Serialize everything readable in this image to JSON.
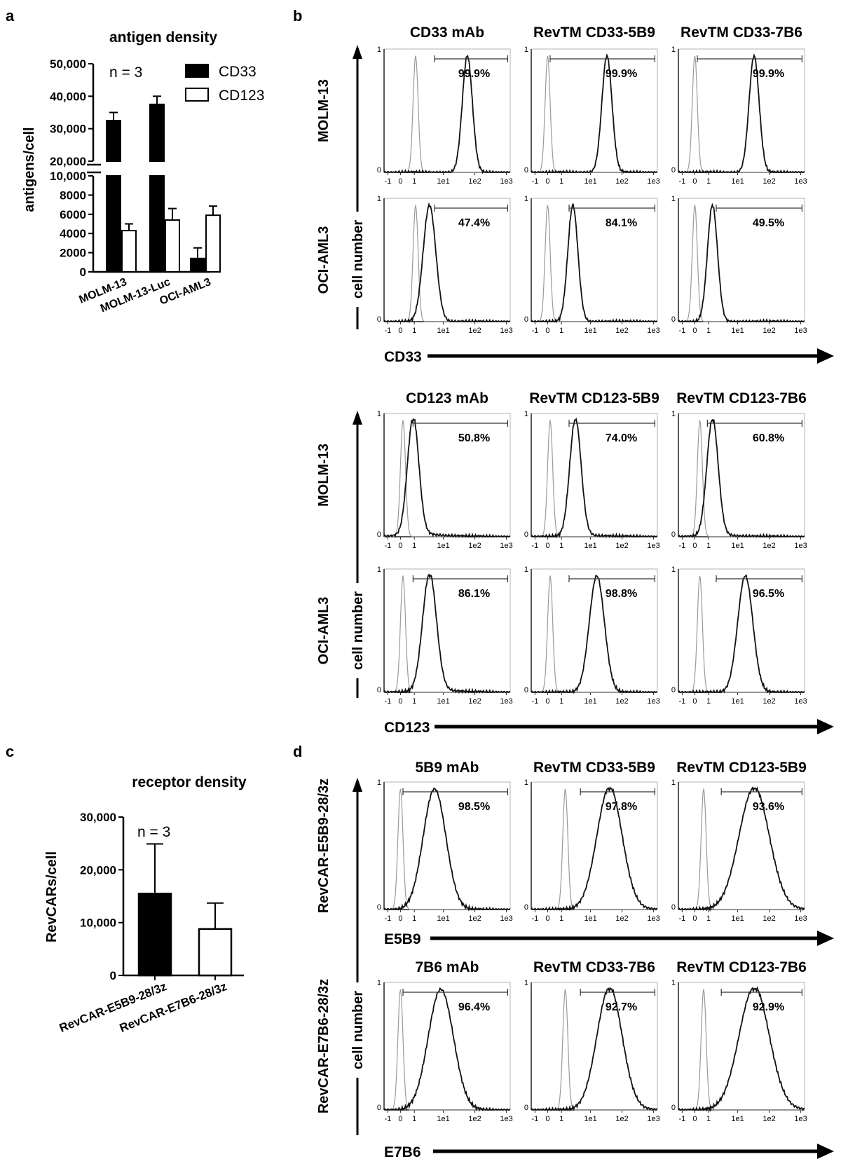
{
  "chart_data": [
    {
      "panel": "a",
      "type": "bar",
      "title": "antigen density",
      "annotation": "n = 3",
      "xlabel": "",
      "ylabel": "antigens/cell",
      "categories": [
        "MOLM-13",
        "MOLM-13-Luc",
        "OCI-AML3"
      ],
      "axis_break": {
        "lower": [
          0,
          10000
        ],
        "upper": [
          20000,
          50000
        ]
      },
      "lower_ticks": [
        0,
        2000,
        4000,
        6000,
        8000,
        10000
      ],
      "lower_tick_labels": [
        "0",
        "2000",
        "4000",
        "6000",
        "8000",
        "10,000"
      ],
      "upper_ticks": [
        20000,
        30000,
        40000,
        50000
      ],
      "upper_tick_labels": [
        "20,000",
        "30,000",
        "40,000",
        "50,000"
      ],
      "series": [
        {
          "name": "CD33",
          "fill": "#000000",
          "values": [
            32500,
            37500,
            1400
          ],
          "errors": [
            2500,
            2500,
            1100
          ]
        },
        {
          "name": "CD123",
          "fill": "#ffffff",
          "values": [
            4300,
            5400,
            5900
          ],
          "errors": [
            700,
            1200,
            950
          ]
        }
      ]
    },
    {
      "panel": "c",
      "type": "bar",
      "title": "receptor density",
      "annotation": "n = 3",
      "xlabel": "",
      "ylabel": "RevCARs/cell",
      "categories": [
        "RevCAR-E5B9-28/3z",
        "RevCAR-E7B6-28/3z"
      ],
      "ylim": [
        0,
        30000
      ],
      "ticks": [
        0,
        10000,
        20000,
        30000
      ],
      "tick_labels": [
        "0",
        "10,000",
        "20,000",
        "30,000"
      ],
      "series": [
        {
          "name": "receptor density",
          "fills": [
            "#000000",
            "#ffffff"
          ],
          "values": [
            15500,
            8800
          ],
          "errors": [
            9400,
            4900
          ]
        }
      ]
    },
    {
      "panel": "b",
      "type": "histogram",
      "y_title": "cell number",
      "x_tick_labels": [
        "-1",
        "0",
        "1",
        "1e1",
        "1e2",
        "1e3"
      ],
      "y_tick_labels": [
        "0",
        "1"
      ],
      "blocks": [
        {
          "x_title": "CD33",
          "columns": [
            "CD33 mAb",
            "RevTM CD33-5B9",
            "RevTM CD33-7B6"
          ],
          "rows": [
            "MOLM-13",
            "OCI-AML3"
          ],
          "percents": [
            [
              "99.9%",
              "99.9%",
              "99.9%"
            ],
            [
              "47.4%",
              "84.1%",
              "49.5%"
            ]
          ],
          "control_peaks": [
            [
              0.25,
              0.13,
              0.13
            ],
            [
              0.25,
              0.13,
              0.13
            ]
          ],
          "stain_peaks": [
            [
              0.66,
              0.6,
              0.6
            ],
            [
              0.36,
              0.33,
              0.27
            ]
          ],
          "stain_widths": [
            [
              0.04,
              0.04,
              0.04
            ],
            [
              0.05,
              0.04,
              0.04
            ]
          ],
          "stain_tails": [
            [
              0,
              0,
              0
            ],
            [
              0,
              0,
              0
            ]
          ],
          "gate_starts": [
            [
              0.4,
              0.15,
              0.15
            ],
            [
              0.4,
              0.3,
              0.3
            ]
          ]
        },
        {
          "x_title": "CD123",
          "columns": [
            "CD123 mAb",
            "RevTM CD123-5B9",
            "RevTM CD123-7B6"
          ],
          "rows": [
            "MOLM-13",
            "OCI-AML3"
          ],
          "percents": [
            [
              "50.8%",
              "74.0%",
              "60.8%"
            ],
            [
              "86.1%",
              "98.8%",
              "96.5%"
            ]
          ],
          "control_peaks": [
            [
              0.15,
              0.15,
              0.17
            ],
            [
              0.15,
              0.15,
              0.17
            ]
          ],
          "stain_peaks": [
            [
              0.23,
              0.35,
              0.27
            ],
            [
              0.36,
              0.52,
              0.53
            ]
          ],
          "stain_widths": [
            [
              0.045,
              0.045,
              0.045
            ],
            [
              0.055,
              0.06,
              0.06
            ]
          ],
          "stain_tails": [
            [
              0.4,
              0.2,
              0.2
            ],
            [
              0.3,
              0,
              0
            ]
          ],
          "gate_starts": [
            [
              0.23,
              0.3,
              0.23
            ],
            [
              0.23,
              0.3,
              0.3
            ]
          ]
        }
      ]
    },
    {
      "panel": "d",
      "type": "histogram",
      "y_title": "cell number",
      "x_tick_labels": [
        "-1",
        "0",
        "1",
        "1e1",
        "1e2",
        "1e3"
      ],
      "y_tick_labels": [
        "0",
        "1"
      ],
      "blocks": [
        {
          "x_title": "E5B9",
          "columns": [
            "5B9 mAb",
            "RevTM CD33-5B9",
            "RevTM CD123-5B9"
          ],
          "rows": [
            "RevCAR-E5B9-28/3z"
          ],
          "percents": [
            [
              "98.5%",
              "97.8%",
              "93.6%"
            ]
          ],
          "control_peaks": [
            [
              0.13,
              0.27,
              0.2
            ]
          ],
          "stain_peaks": [
            [
              0.4,
              0.62,
              0.6
            ]
          ],
          "stain_widths": [
            [
              0.09,
              0.1,
              0.12
            ]
          ],
          "stain_tails": [
            [
              0,
              0.2,
              0.15
            ]
          ],
          "gate_starts": [
            [
              0.15,
              0.39,
              0.34
            ]
          ]
        },
        {
          "x_title": "E7B6",
          "columns": [
            "7B6 mAb",
            "RevTM CD33-7B6",
            "RevTM CD123-7B6"
          ],
          "rows": [
            "RevCAR-E7B6-28/3z"
          ],
          "percents": [
            [
              "96.4%",
              "92.7%",
              "92.9%"
            ]
          ],
          "control_peaks": [
            [
              0.13,
              0.27,
              0.2
            ]
          ],
          "stain_peaks": [
            [
              0.45,
              0.62,
              0.6
            ]
          ],
          "stain_widths": [
            [
              0.1,
              0.1,
              0.12
            ]
          ],
          "stain_tails": [
            [
              0,
              0.2,
              0.25
            ]
          ],
          "gate_starts": [
            [
              0.15,
              0.39,
              0.34
            ]
          ]
        }
      ]
    }
  ],
  "panel_labels": {
    "a": "a",
    "b": "b",
    "c": "c",
    "d": "d"
  }
}
